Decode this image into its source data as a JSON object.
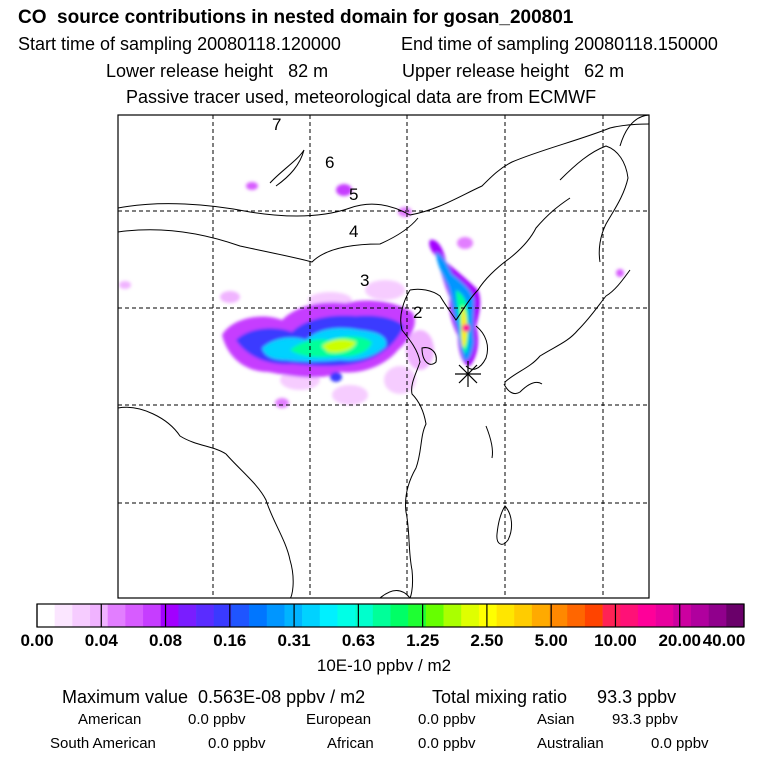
{
  "header": {
    "title": "CO  source contributions in nested domain for gosan_200801",
    "start_label": "Start time of sampling 20080118.120000",
    "end_label": "End time of sampling 20080118.150000",
    "lower_label": "Lower release height   82 m",
    "upper_label": "Upper release height   62 m",
    "info": "Passive tracer used, meteorological data are from ECMWF"
  },
  "map": {
    "day_labels": [
      "7",
      "6",
      "5",
      "4",
      "3",
      "2"
    ],
    "station_marker": "asterisk-icon"
  },
  "colorbar": {
    "tick_labels": [
      "0.00",
      "0.04",
      "0.08",
      "0.16",
      "0.31",
      "0.63",
      "1.25",
      "2.50",
      "5.00",
      "10.00",
      "20.00",
      "40.00"
    ],
    "colors": [
      "#ffffff",
      "#fbe6ff",
      "#f6ccff",
      "#f0b3ff",
      "#e27eff",
      "#d75cff",
      "#c63dff",
      "#a200ff",
      "#7a1dff",
      "#5a2cff",
      "#3a3aff",
      "#1f55ff",
      "#0076ff",
      "#0096ff",
      "#00b4ff",
      "#00d2ff",
      "#00f0ff",
      "#00ffe6",
      "#00ffcc",
      "#00ff99",
      "#00ff66",
      "#1eff33",
      "#66ff00",
      "#aaff00",
      "#dfff00",
      "#ffff00",
      "#ffe600",
      "#ffcc00",
      "#ffaa00",
      "#ff8800",
      "#ff6600",
      "#ff4400",
      "#ff2255",
      "#ff1177",
      "#ff0099",
      "#e8009e",
      "#cc00a0",
      "#b0009e",
      "#90008c",
      "#6a006a"
    ],
    "units": "10E-10 ppbv / m2"
  },
  "summary": {
    "maximum": "Maximum value  0.563E-08 ppbv / m2",
    "total": "Total mixing ratio      93.3 ppbv",
    "american": "American",
    "american_val": "0.0 ppbv",
    "european": "European",
    "european_val": "0.0 ppbv",
    "asian": "Asian",
    "asian_val": "93.3 ppbv",
    "south_american": "South American",
    "south_american_val": "0.0 ppbv",
    "african": "African",
    "african_val": "0.0 ppbv",
    "australian": "Australian",
    "australian_val": "0.0 ppbv"
  }
}
